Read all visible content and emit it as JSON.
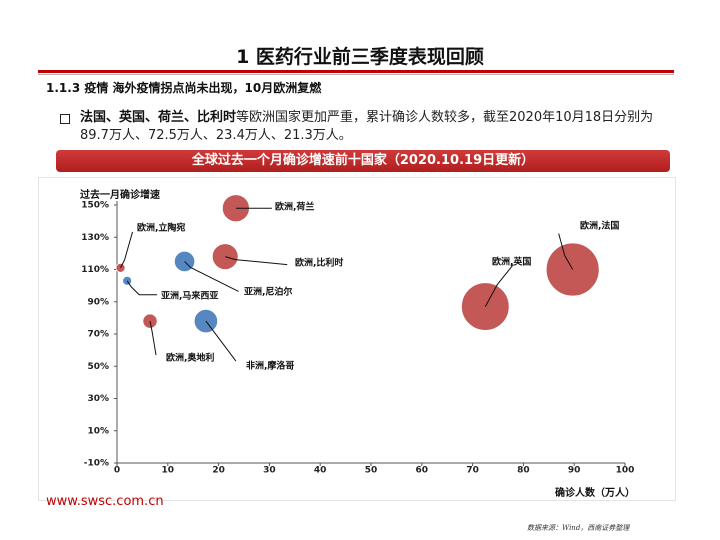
{
  "header": {
    "title": "1   医药行业前三季度表现回顾",
    "section": "1.1.3 疫情 海外疫情拐点尚未出现，10月欧洲复燃"
  },
  "summary": {
    "bold_lead": "法国、英国、荷兰、比利时",
    "text": "等欧洲国家更加严重，累计确诊人数较多，截至2020年10月18日分别为89.7万人、72.5万人、23.4万人、21.3万人。"
  },
  "banner": {
    "text": "全球过去一个月确诊增速前十国家（2020.10.19日更新）"
  },
  "footer": {
    "url": "www.swsc.com.cn",
    "source": "数据来源：Wind，西南证券整理"
  },
  "colors": {
    "europe": "#c0504d",
    "asia_africa": "#4f81bd",
    "accent": "#c00000"
  },
  "chart_data": {
    "type": "scatter",
    "xlabel": "确诊人数（万人）",
    "ylabel": "过去一月确诊增速",
    "xlim": [
      0,
      100
    ],
    "ylim": [
      -10,
      150
    ],
    "x_ticks": [
      "0",
      "10",
      "20",
      "30",
      "40",
      "50",
      "60",
      "70",
      "80",
      "90",
      "100"
    ],
    "y_ticks": [
      "-10%",
      "10%",
      "30%",
      "50%",
      "70%",
      "90%",
      "110%",
      "130%",
      "150%"
    ],
    "points": [
      {
        "label": "欧洲,法国",
        "x": 89.7,
        "y": 110,
        "group": "europe",
        "size": 89.7
      },
      {
        "label": "欧洲,英国",
        "x": 72.5,
        "y": 87,
        "group": "europe",
        "size": 72.5
      },
      {
        "label": "欧洲,荷兰",
        "x": 23.4,
        "y": 148,
        "group": "europe",
        "size": 23.4
      },
      {
        "label": "欧洲,比利时",
        "x": 21.3,
        "y": 118,
        "group": "europe",
        "size": 21.3
      },
      {
        "label": "欧洲,奥地利",
        "x": 6.5,
        "y": 78,
        "group": "europe",
        "size": 6.5
      },
      {
        "label": "欧洲,立陶宛",
        "x": 0.7,
        "y": 111,
        "group": "europe",
        "size": 0.7
      },
      {
        "label": "亚洲,尼泊尔",
        "x": 13.3,
        "y": 115,
        "group": "asia_africa",
        "size": 13.3
      },
      {
        "label": "亚洲,马来西亚",
        "x": 2.0,
        "y": 103,
        "group": "asia_africa",
        "size": 2.0
      },
      {
        "label": "非洲,摩洛哥",
        "x": 17.5,
        "y": 78,
        "group": "asia_africa",
        "size": 17.5
      }
    ]
  }
}
